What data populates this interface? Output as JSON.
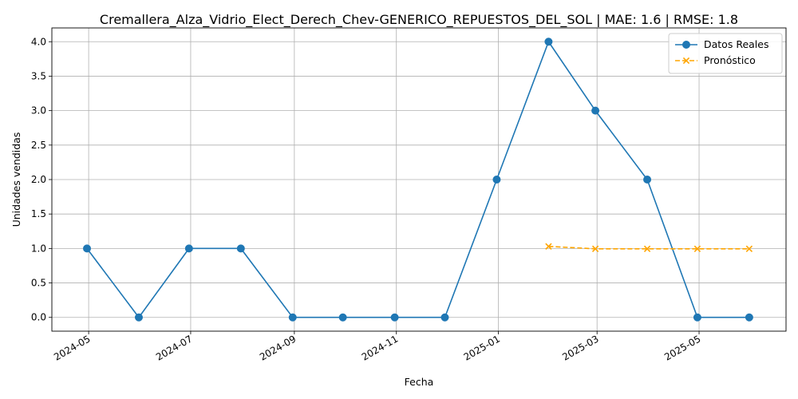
{
  "chart_data": {
    "type": "line",
    "title": "Cremallera_Alza_Vidrio_Elect_Derech_Chev-GENERICO_REPUESTOS_DEL_SOL | MAE: 1.6 | RMSE: 1.8",
    "xlabel": "Fecha",
    "ylabel": "Unidades vendidas",
    "ylim": [
      -0.2,
      4.2
    ],
    "xlim": [
      "2024-04-09",
      "2025-06-22"
    ],
    "x_ticks": [
      "2024-05",
      "2024-07",
      "2024-09",
      "2024-11",
      "2025-01",
      "2025-03",
      "2025-05"
    ],
    "y_ticks": [
      "0.0",
      "0.5",
      "1.0",
      "1.5",
      "2.0",
      "2.5",
      "3.0",
      "3.5",
      "4.0"
    ],
    "grid": true,
    "legend_position": "top-right",
    "series": [
      {
        "name": "Datos Reales",
        "color": "#1f77b4",
        "marker": "circle",
        "line_style": "solid",
        "points": [
          {
            "x": "2024-04-30",
            "y": 1
          },
          {
            "x": "2024-05-31",
            "y": 0
          },
          {
            "x": "2024-06-30",
            "y": 1
          },
          {
            "x": "2024-07-31",
            "y": 1
          },
          {
            "x": "2024-08-31",
            "y": 0
          },
          {
            "x": "2024-09-30",
            "y": 0
          },
          {
            "x": "2024-10-31",
            "y": 0
          },
          {
            "x": "2024-11-30",
            "y": 0
          },
          {
            "x": "2024-12-31",
            "y": 2
          },
          {
            "x": "2025-01-31",
            "y": 4
          },
          {
            "x": "2025-02-28",
            "y": 3
          },
          {
            "x": "2025-03-31",
            "y": 2
          },
          {
            "x": "2025-04-30",
            "y": 0
          },
          {
            "x": "2025-05-31",
            "y": 0
          }
        ]
      },
      {
        "name": "Pronóstico",
        "color": "#ffa500",
        "marker": "x",
        "line_style": "dashed",
        "points": [
          {
            "x": "2025-01-31",
            "y": 1.03
          },
          {
            "x": "2025-02-28",
            "y": 0.995
          },
          {
            "x": "2025-03-31",
            "y": 0.995
          },
          {
            "x": "2025-04-30",
            "y": 0.995
          },
          {
            "x": "2025-05-31",
            "y": 0.995
          }
        ]
      }
    ]
  }
}
